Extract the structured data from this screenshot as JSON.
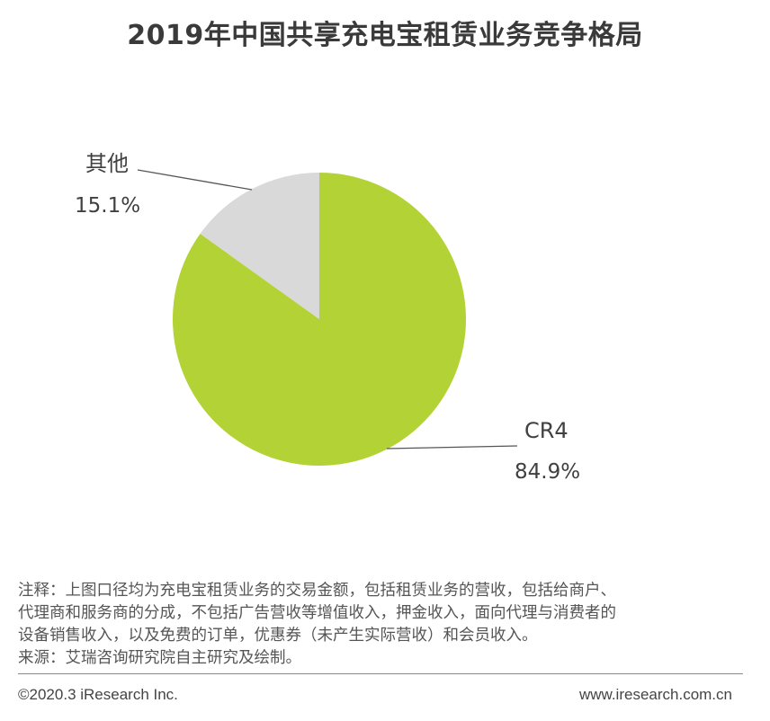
{
  "chart_data": {
    "type": "pie",
    "title": "2019年中国共享充电宝租赁业务竞争格局",
    "categories": [
      "CR4",
      "其他"
    ],
    "values": [
      84.9,
      15.1
    ],
    "value_labels": [
      "84.9%",
      "15.1%"
    ],
    "colors": [
      "#b3d235",
      "#d9d9d9"
    ],
    "start_angle": "12 o'clock",
    "direction": "clockwise",
    "legend": "none"
  },
  "notes": {
    "line1": "注释：上图口径均为充电宝租赁业务的交易金额，包括租赁业务的营收，包括给商户、",
    "line2": "代理商和服务商的分成，不包括广告营收等增值收入，押金收入，面向代理与消费者的",
    "line3": "设备销售收入，以及免费的订单，优惠券（未产生实际营收）和会员收入。",
    "source": "来源：艾瑞咨询研究院自主研究及绘制。"
  },
  "footer": {
    "copyright": "©2020.3 iResearch Inc.",
    "website": "www.iresearch.com.cn"
  }
}
